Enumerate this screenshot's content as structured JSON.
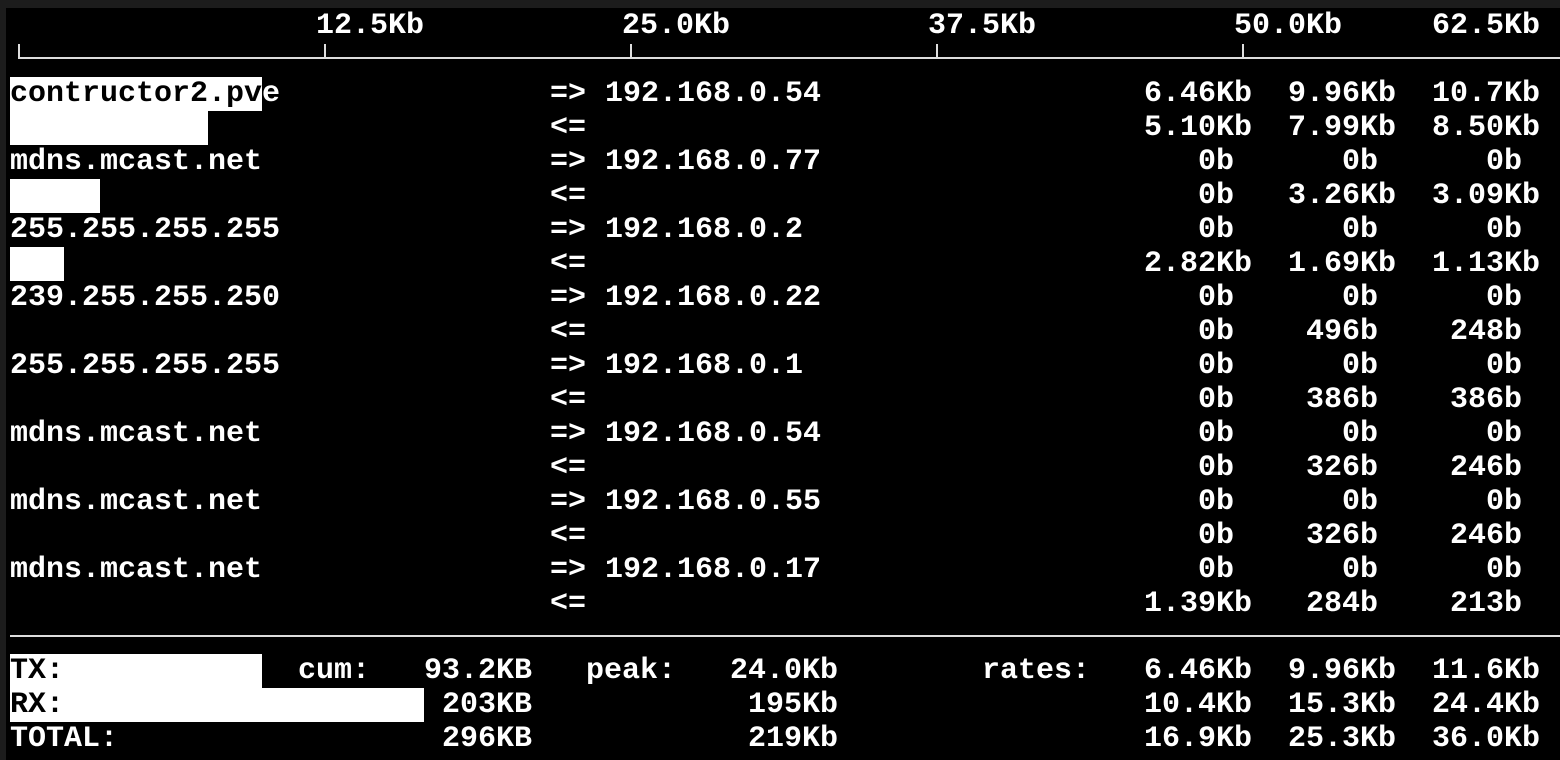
{
  "scale": {
    "unit_max_kb": 62.5,
    "ticks": [
      "12.5Kb",
      "25.0Kb",
      "37.5Kb",
      "50.0Kb",
      "62.5Kb"
    ]
  },
  "flows": [
    {
      "host": "contructor2.pve",
      "peer": "192.168.0.54",
      "tx": [
        "6.46Kb",
        "9.96Kb",
        "10.7Kb"
      ],
      "rx": [
        "5.10Kb",
        "7.99Kb",
        "8.50Kb"
      ]
    },
    {
      "host": "mdns.mcast.net",
      "peer": "192.168.0.77",
      "tx": [
        "0b",
        "0b",
        "0b"
      ],
      "rx": [
        "0b",
        "3.26Kb",
        "3.09Kb"
      ]
    },
    {
      "host": "255.255.255.255",
      "peer": "192.168.0.2",
      "tx": [
        "0b",
        "0b",
        "0b"
      ],
      "rx": [
        "2.82Kb",
        "1.69Kb",
        "1.13Kb"
      ]
    },
    {
      "host": "239.255.255.250",
      "peer": "192.168.0.22",
      "tx": [
        "0b",
        "0b",
        "0b"
      ],
      "rx": [
        "0b",
        "496b",
        "248b"
      ]
    },
    {
      "host": "255.255.255.255",
      "peer": "192.168.0.1",
      "tx": [
        "0b",
        "0b",
        "0b"
      ],
      "rx": [
        "0b",
        "386b",
        "386b"
      ]
    },
    {
      "host": "mdns.mcast.net",
      "peer": "192.168.0.54",
      "tx": [
        "0b",
        "0b",
        "0b"
      ],
      "rx": [
        "0b",
        "326b",
        "246b"
      ]
    },
    {
      "host": "mdns.mcast.net",
      "peer": "192.168.0.55",
      "tx": [
        "0b",
        "0b",
        "0b"
      ],
      "rx": [
        "0b",
        "326b",
        "246b"
      ]
    },
    {
      "host": "mdns.mcast.net",
      "peer": "192.168.0.17",
      "tx": [
        "0b",
        "0b",
        "0b"
      ],
      "rx": [
        "1.39Kb",
        "284b",
        "213b"
      ]
    }
  ],
  "arrows": {
    "out": "=>",
    "in": "<="
  },
  "totals": {
    "cum_label": "cum:",
    "peak_label": "peak:",
    "rates_label": "rates:",
    "rows": [
      {
        "label": "TX:",
        "cum": "93.2KB",
        "peak": "24.0Kb",
        "rates": [
          "6.46Kb",
          "9.96Kb",
          "11.6Kb"
        ],
        "bar_kb": 9.96
      },
      {
        "label": "RX:",
        "cum": "203KB",
        "peak": "195Kb",
        "rates": [
          "10.4Kb",
          "15.3Kb",
          "24.4Kb"
        ],
        "bar_kb": 16.2
      },
      {
        "label": "TOTAL:",
        "cum": "296KB",
        "peak": "219Kb",
        "rates": [
          "16.9Kb",
          "25.3Kb",
          "36.0Kb"
        ]
      }
    ]
  },
  "colors": {
    "background": "#000000",
    "text": "#ffffff",
    "bar": "#ffffff"
  }
}
